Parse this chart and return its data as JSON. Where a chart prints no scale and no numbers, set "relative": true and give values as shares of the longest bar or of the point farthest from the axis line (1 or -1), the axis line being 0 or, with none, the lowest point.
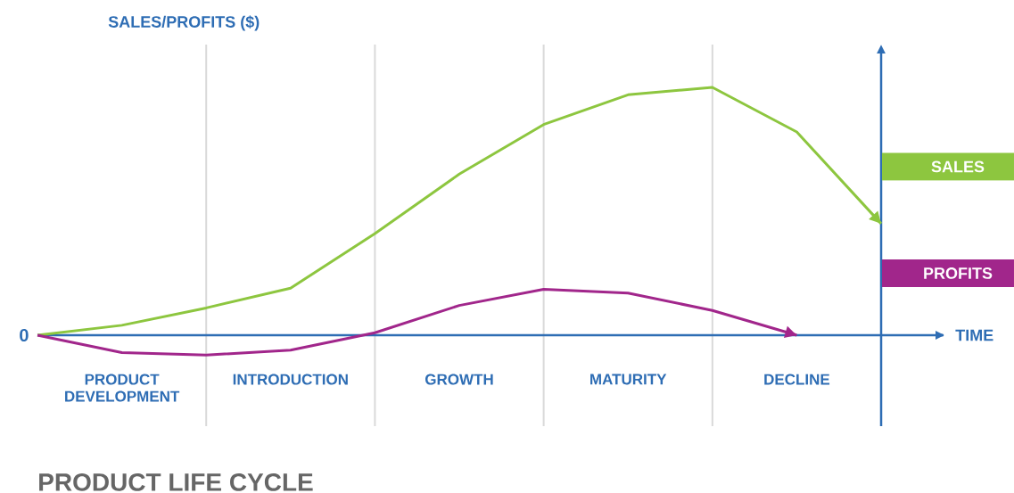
{
  "chart_data": {
    "type": "line",
    "relative": true,
    "title": "PRODUCT LIFE CYCLE",
    "xlabel": "TIME",
    "ylabel": "SALES/PROFITS ($)",
    "categories": [
      null,
      "PRODUCT DEVELOPMENT",
      null,
      "INTRODUCTION",
      null,
      "GROWTH",
      null,
      "MATURITY",
      null,
      "DECLINE",
      null
    ],
    "series": [
      {
        "name": "SALES",
        "color": "#8dc63f",
        "values": [
          0,
          0.04,
          0.11,
          0.19,
          0.41,
          0.65,
          0.85,
          0.97,
          1,
          0.82,
          0.45
        ]
      },
      {
        "name": "PROFITS",
        "color": "#a1268b",
        "values": [
          0,
          -0.07,
          -0.08,
          -0.06,
          0.01,
          0.12,
          0.185,
          0.17,
          0.1,
          0,
          null
        ]
      }
    ],
    "annotations": [
      "0"
    ],
    "grid": "x",
    "legend": "right"
  }
}
